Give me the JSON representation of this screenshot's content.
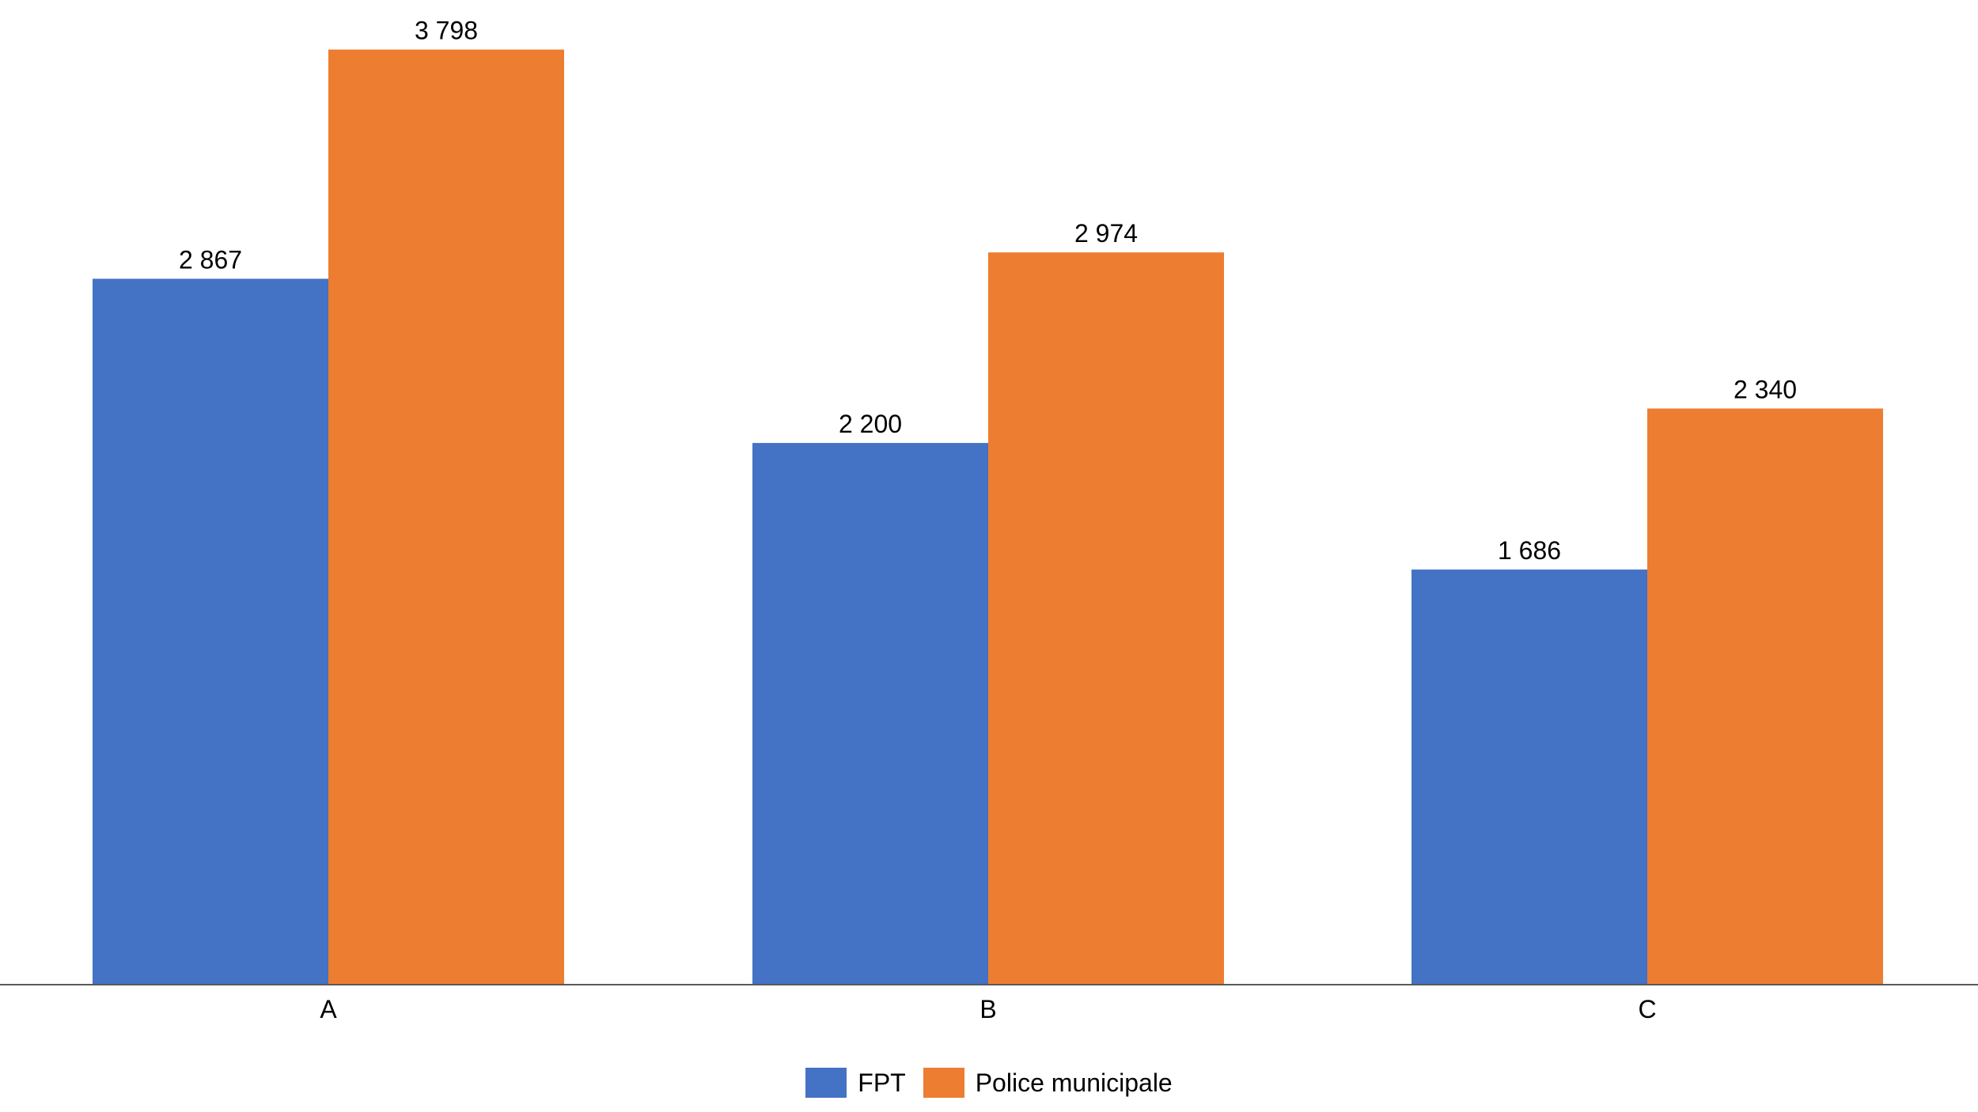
{
  "chart_data": {
    "type": "bar",
    "title": "",
    "xlabel": "",
    "ylabel": "",
    "categories": [
      "A",
      "B",
      "C"
    ],
    "series": [
      {
        "name": "FPT",
        "color": "#4472C4",
        "values": [
          2867,
          2200,
          1686
        ],
        "labels": [
          "2 867",
          "2 200",
          "1 686"
        ]
      },
      {
        "name": "Police municipale",
        "color": "#ED7D31",
        "values": [
          3798,
          2974,
          2340
        ],
        "labels": [
          "3 798",
          "2 974",
          "2 340"
        ]
      }
    ],
    "ylim": [
      0,
      3800
    ],
    "grid": false,
    "legend_position": "bottom"
  }
}
